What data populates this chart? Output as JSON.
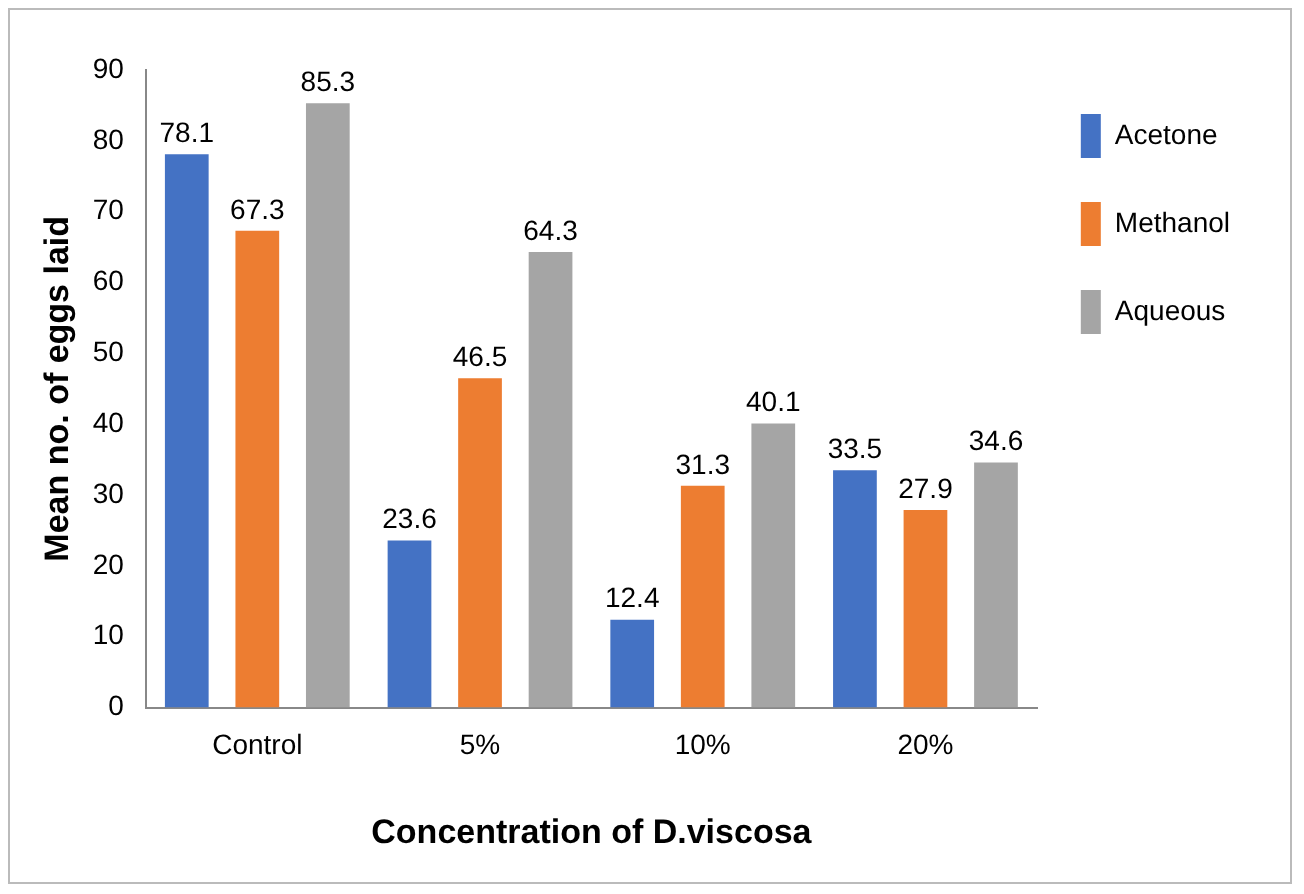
{
  "chart_data": {
    "type": "bar",
    "xlabel": "Concentration of D.viscosa",
    "ylabel": "Mean no. of eggs laid",
    "categories": [
      "Control",
      "5%",
      "10%",
      "20%"
    ],
    "series": [
      {
        "name": "Acetone",
        "color": "#4472c4",
        "values": [
          78.1,
          23.6,
          12.4,
          33.5
        ]
      },
      {
        "name": "Methanol",
        "color": "#ed7d31",
        "values": [
          67.3,
          46.5,
          31.3,
          27.9
        ]
      },
      {
        "name": "Aqueous",
        "color": "#a5a5a5",
        "values": [
          85.3,
          64.3,
          40.1,
          34.6
        ]
      }
    ],
    "ylim": [
      0,
      90
    ],
    "yticks": [
      0,
      10,
      20,
      30,
      40,
      50,
      60,
      70,
      80,
      90
    ],
    "grid": false,
    "legend": "right",
    "data_labels": true
  }
}
